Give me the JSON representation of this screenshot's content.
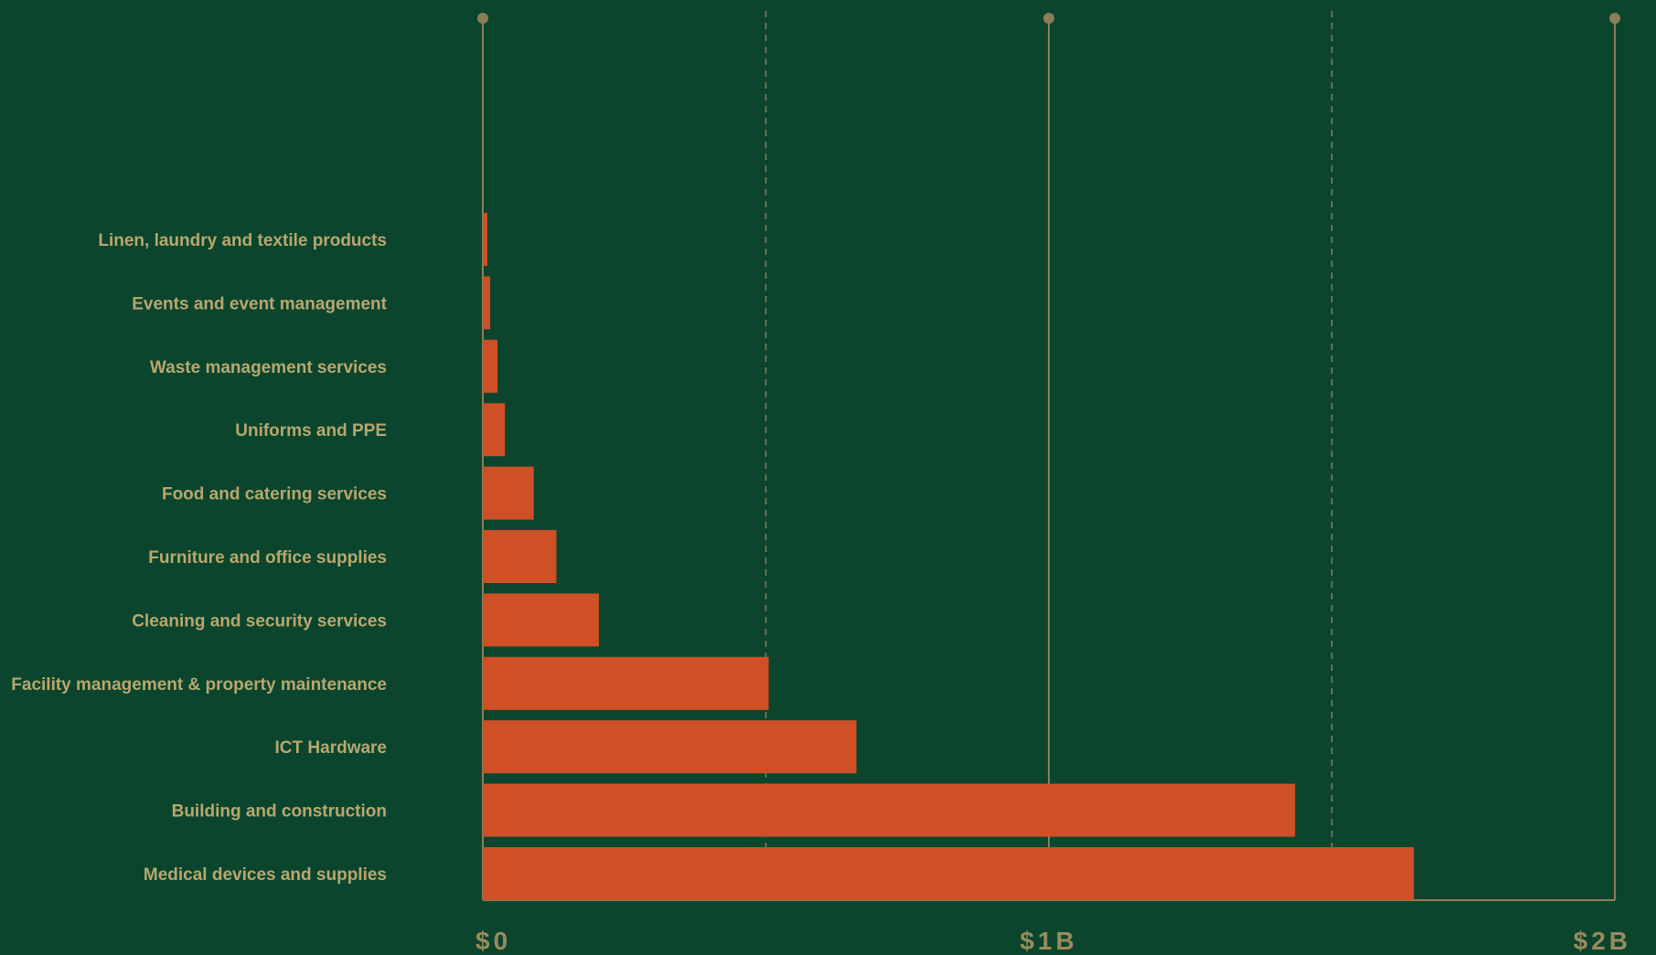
{
  "colors": {
    "background": "#0b452d",
    "bar": "#cf5027",
    "axis": "#8d7e58",
    "label": "#b8a76f"
  },
  "chart_data": {
    "type": "bar",
    "orientation": "horizontal",
    "unit": "USD",
    "xlim": [
      0,
      2000000000
    ],
    "grid": true,
    "categories": [
      "Linen, laundry and textile products",
      "Events and event management",
      "Waste management services",
      "Uniforms and PPE",
      "Food and catering services",
      "Furniture and office supplies",
      "Cleaning and security services",
      "Facility management & property maintenance",
      "ICT Hardware",
      "Building and construction",
      "Medical devices and supplies"
    ],
    "values": [
      8000000,
      13000000,
      26000000,
      39000000,
      90000000,
      130000000,
      205000000,
      505000000,
      660000000,
      1435000000,
      1645000000
    ],
    "ticks": [
      {
        "value": 0,
        "label": "$0"
      },
      {
        "value": 1000000000,
        "label": "$1B"
      },
      {
        "value": 2000000000,
        "label": "$2B"
      }
    ],
    "minor_gridlines": [
      500000000,
      1500000000
    ]
  }
}
